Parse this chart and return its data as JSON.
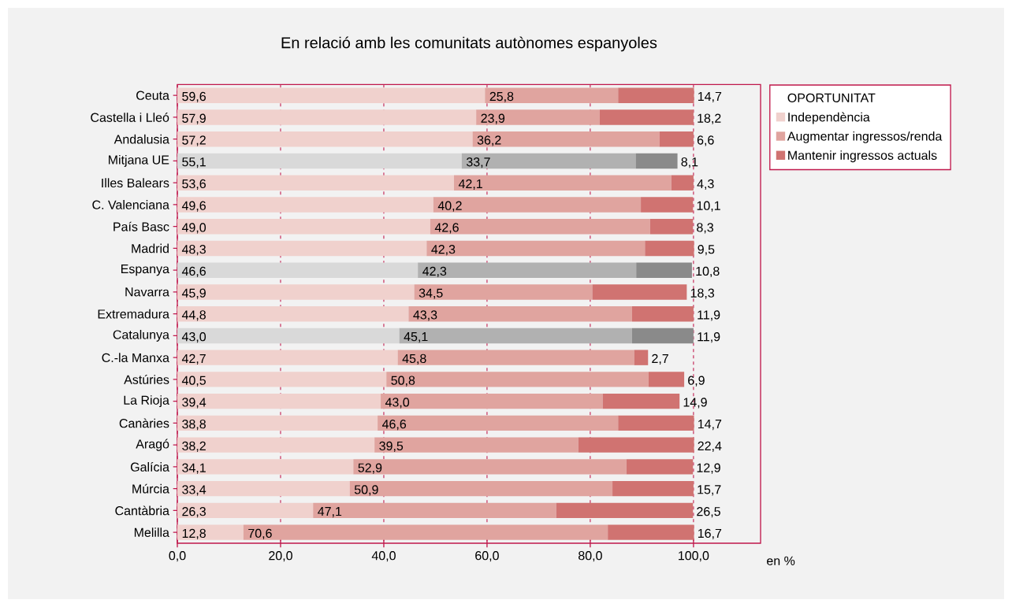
{
  "chart_data": {
    "type": "bar",
    "orientation": "horizontal",
    "stacked": true,
    "title": "En relació amb les comunitats autònomes espanyoles",
    "xlabel": "en %",
    "legend_title": "OPORTUNITAT",
    "legend": "right",
    "grid": "x",
    "categories": [
      "Ceuta",
      "Castella i Lleó",
      "Andalusia",
      "Mitjana UE",
      "Illes Balears",
      "C. Valenciana",
      "País Basc",
      "Madrid",
      "Espanya",
      "Navarra",
      "Extremadura",
      "Catalunya",
      "C.-la Manxa",
      "Astúries",
      "La Rioja",
      "Canàries",
      "Aragó",
      "Galícia",
      "Múrcia",
      "Cantàbria",
      "Melilla"
    ],
    "xlim": [
      0,
      113
    ],
    "xticks": [
      {
        "value": 0,
        "label": "0,0"
      },
      {
        "value": 20,
        "label": "20,0"
      },
      {
        "value": 40,
        "label": "40,0"
      },
      {
        "value": 60,
        "label": "60,0"
      },
      {
        "value": 80,
        "label": "80,0"
      },
      {
        "value": 100,
        "label": "100,0"
      }
    ],
    "series": [
      {
        "name": "Independència",
        "color": "#f0d1cd",
        "colors": [
          "#f0d1cd",
          "#f0d1cd",
          "#f0d1cd",
          "#d9d9d9",
          "#f0d1cd",
          "#f0d1cd",
          "#f0d1cd",
          "#f0d1cd",
          "#d9d9d9",
          "#f0d1cd",
          "#f0d1cd",
          "#d9d9d9",
          "#f0d1cd",
          "#f0d1cd",
          "#f0d1cd",
          "#f0d1cd",
          "#f0d1cd",
          "#f0d1cd",
          "#f0d1cd",
          "#f0d1cd",
          "#f0d1cd"
        ],
        "values": [
          59.6,
          57.9,
          57.2,
          55.1,
          53.6,
          49.6,
          49.0,
          48.3,
          46.6,
          45.9,
          44.8,
          43.0,
          42.7,
          40.5,
          39.4,
          38.8,
          38.2,
          34.1,
          33.4,
          26.3,
          12.8
        ],
        "value_labels": [
          "59,6",
          "57,9",
          "57,2",
          "55,1",
          "53,6",
          "49,6",
          "49,0",
          "48,3",
          "46,6",
          "45,9",
          "44,8",
          "43,0",
          "42,7",
          "40,5",
          "39,4",
          "38,8",
          "38,2",
          "34,1",
          "33,4",
          "26,3",
          "12,8"
        ]
      },
      {
        "name": "Augmentar ingressos/renda",
        "color": "#e0a49f",
        "colors": [
          "#e0a49f",
          "#e0a49f",
          "#e0a49f",
          "#b1b1b1",
          "#e0a49f",
          "#e0a49f",
          "#e0a49f",
          "#e0a49f",
          "#b1b1b1",
          "#e0a49f",
          "#e0a49f",
          "#b1b1b1",
          "#e0a49f",
          "#e0a49f",
          "#e0a49f",
          "#e0a49f",
          "#e0a49f",
          "#e0a49f",
          "#e0a49f",
          "#e0a49f",
          "#e0a49f"
        ],
        "values": [
          25.8,
          23.9,
          36.2,
          33.7,
          42.1,
          40.2,
          42.6,
          42.3,
          42.3,
          34.5,
          43.3,
          45.1,
          45.8,
          50.8,
          43.0,
          46.6,
          39.5,
          52.9,
          50.9,
          47.1,
          70.6
        ],
        "value_labels": [
          "25,8",
          "23,9",
          "36,2",
          "33,7",
          "42,1",
          "40,2",
          "42,6",
          "42,3",
          "42,3",
          "34,5",
          "43,3",
          "45,1",
          "45,8",
          "50,8",
          "43,0",
          "46,6",
          "39,5",
          "52,9",
          "50,9",
          "47,1",
          "70,6"
        ]
      },
      {
        "name": "Mantenir ingressos actuals",
        "color": "#d07371",
        "colors": [
          "#d07371",
          "#d07371",
          "#d07371",
          "#8a8a8a",
          "#d07371",
          "#d07371",
          "#d07371",
          "#d07371",
          "#8a8a8a",
          "#d07371",
          "#d07371",
          "#8a8a8a",
          "#d07371",
          "#d07371",
          "#d07371",
          "#d07371",
          "#d07371",
          "#d07371",
          "#d07371",
          "#d07371",
          "#d07371"
        ],
        "values": [
          14.7,
          18.2,
          6.6,
          8.1,
          4.3,
          10.1,
          8.3,
          9.5,
          10.8,
          18.3,
          11.9,
          11.9,
          2.7,
          6.9,
          14.9,
          14.7,
          22.4,
          12.9,
          15.7,
          26.5,
          16.7
        ],
        "value_labels": [
          "14,7",
          "18,2",
          "6,6",
          "8,1",
          "4,3",
          "10,1",
          "8,3",
          "9,5",
          "10,8",
          "18,3",
          "11,9",
          "11,9",
          "2,7",
          "6,9",
          "14,9",
          "14,7",
          "22,4",
          "12,9",
          "15,7",
          "26,5",
          "16,7"
        ]
      }
    ]
  }
}
